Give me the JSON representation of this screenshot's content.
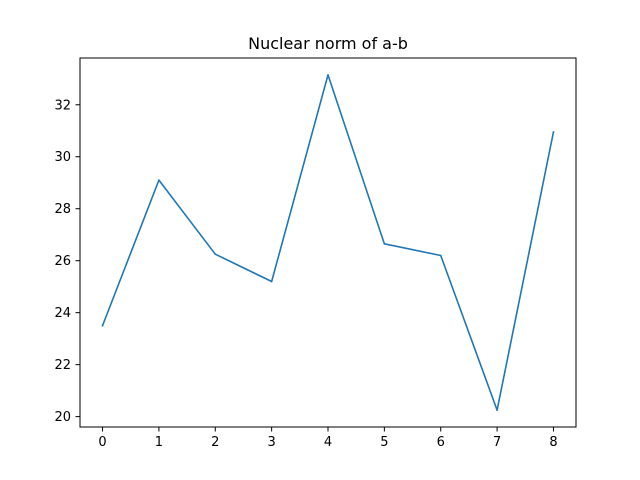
{
  "chart_data": {
    "type": "line",
    "title": "Nuclear norm of a-b",
    "xlabel": "",
    "ylabel": "",
    "x": [
      0,
      1,
      2,
      3,
      4,
      5,
      6,
      7,
      8
    ],
    "series": [
      {
        "values": [
          23.5,
          29.1,
          26.25,
          25.2,
          33.15,
          26.65,
          26.2,
          20.25,
          30.95
        ],
        "color": "#1f77b4"
      }
    ],
    "xlim": [
      -0.4,
      8.4
    ],
    "ylim": [
      19.6,
      33.8
    ],
    "xticks": [
      0,
      1,
      2,
      3,
      4,
      5,
      6,
      7,
      8
    ],
    "yticks": [
      20,
      22,
      24,
      26,
      28,
      30,
      32
    ],
    "grid": false,
    "legend": "none"
  }
}
